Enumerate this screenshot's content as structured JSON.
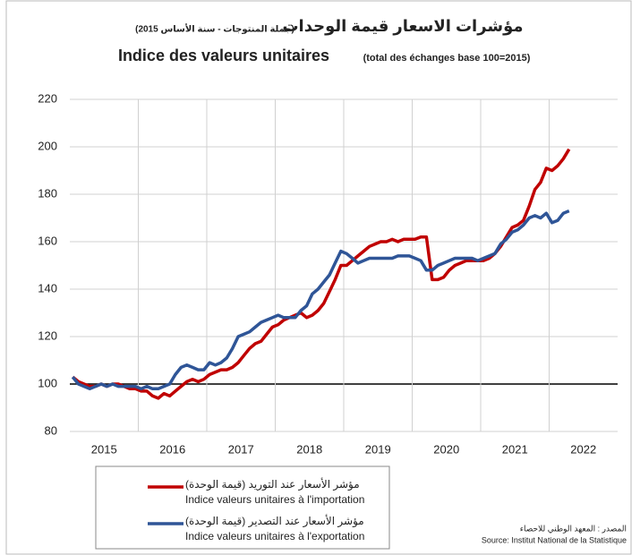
{
  "chart_data": {
    "type": "line",
    "title_ar": "مؤشرات الاسعار قيمة الوحدات",
    "subtitle_ar": "(جملة المنتوجات - سنة الأساس 2015)",
    "title": "Indice des valeurs unitaires",
    "subtitle": "(total des échanges base 100=2015)",
    "source_ar": "المصدر : المعهد الوطني للاحصاء",
    "source": "Source: Institut National de la Statistique",
    "legend": "bottom",
    "grid": true,
    "ylim": [
      80,
      220
    ],
    "yticks": [
      80,
      100,
      120,
      140,
      160,
      180,
      200,
      220
    ],
    "categories": [
      null,
      null,
      null,
      null,
      null,
      null,
      "2015",
      null,
      null,
      null,
      null,
      null,
      null,
      null,
      null,
      null,
      null,
      null,
      "2016",
      null,
      null,
      null,
      null,
      null,
      null,
      null,
      null,
      null,
      null,
      null,
      "2017",
      null,
      null,
      null,
      null,
      null,
      null,
      null,
      null,
      null,
      null,
      null,
      "2018",
      null,
      null,
      null,
      null,
      null,
      null,
      null,
      null,
      null,
      null,
      null,
      "2019",
      null,
      null,
      null,
      null,
      null,
      null,
      null,
      null,
      null,
      null,
      null,
      "2020",
      null,
      null,
      null,
      null,
      null,
      null,
      null,
      null,
      null,
      null,
      null,
      "2021",
      null,
      null,
      null,
      null,
      null,
      null,
      null,
      null,
      null,
      null,
      null,
      "2022",
      null,
      null,
      null,
      null,
      null
    ],
    "series": [
      {
        "name_ar": "مؤشر الأسعار عند التوريد (قيمة الوحدة)",
        "name": "Indice valeurs unitaires à l'importation",
        "color": "#c00000",
        "values": [
          103,
          101,
          100,
          99,
          99,
          100,
          99,
          100,
          100,
          99,
          98,
          98,
          97,
          97,
          95,
          94,
          96,
          95,
          97,
          99,
          101,
          102,
          101,
          102,
          104,
          105,
          106,
          106,
          107,
          109,
          112,
          115,
          117,
          118,
          121,
          124,
          125,
          127,
          128,
          129,
          130,
          128,
          129,
          131,
          134,
          139,
          144,
          150,
          150,
          152,
          154,
          156,
          158,
          159,
          160,
          160,
          161,
          160,
          161,
          161,
          161,
          162,
          162,
          144,
          144,
          145,
          148,
          150,
          151,
          152,
          152,
          152,
          152,
          153,
          155,
          158,
          162,
          166,
          167,
          169,
          175,
          182,
          185,
          191,
          190,
          192,
          195,
          199,
          null,
          null,
          null,
          null,
          null,
          null,
          null,
          null
        ]
      },
      {
        "name_ar": "مؤشر الأسعار عند التصدير (قيمة الوحدة)",
        "name": "Indice valeurs unitaires à l'exportation",
        "color": "#2f5597",
        "values": [
          103,
          100,
          99,
          98,
          99,
          100,
          99,
          100,
          99,
          99,
          99,
          99,
          98,
          99,
          98,
          98,
          99,
          100,
          104,
          107,
          108,
          107,
          106,
          106,
          109,
          108,
          109,
          111,
          115,
          120,
          121,
          122,
          124,
          126,
          127,
          128,
          129,
          128,
          128,
          128,
          131,
          133,
          138,
          140,
          143,
          146,
          151,
          156,
          155,
          153,
          151,
          152,
          153,
          153,
          153,
          153,
          153,
          154,
          154,
          154,
          153,
          152,
          148,
          148,
          150,
          151,
          152,
          153,
          153,
          153,
          153,
          152,
          153,
          154,
          155,
          159,
          161,
          164,
          165,
          167,
          170,
          171,
          170,
          172,
          168,
          169,
          172,
          173,
          null,
          null,
          null,
          null,
          null,
          null,
          null,
          null
        ]
      }
    ]
  }
}
